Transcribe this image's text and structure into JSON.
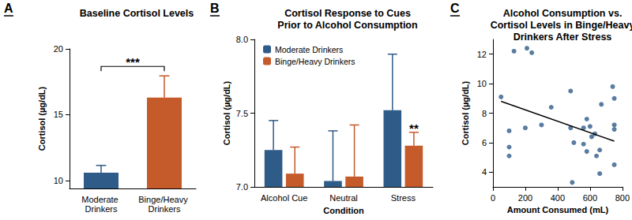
{
  "chart_data": [
    {
      "type": "bar",
      "panel": "A",
      "title": "Baseline Cortisol Levels",
      "y_label": "Cortisol (µg/dL)",
      "categories": [
        "Moderate Drinkers",
        "Binge/Heavy Drinkers"
      ],
      "values": [
        10.6,
        16.3
      ],
      "errors": [
        0.55,
        1.65
      ],
      "colors": [
        "#2f5b88",
        "#c55a2b"
      ],
      "ylim": [
        9.4,
        20
      ],
      "yticks": [
        10,
        15,
        20
      ],
      "grid": false,
      "annotations": [
        {
          "text": "***",
          "categories": [
            "Moderate Drinkers",
            "Binge/Heavy Drinkers"
          ]
        }
      ]
    },
    {
      "type": "bar",
      "panel": "B",
      "title": "Cortisol Response to Cues\nPrior to Alcohol Consumption",
      "x_label": "Condition",
      "y_label": "Cortisol (µg/dL)",
      "categories": [
        "Alcohol Cue",
        "Neutral",
        "Stress"
      ],
      "series": [
        {
          "name": "Moderate Drinkers",
          "color": "#2f5b88",
          "values": [
            7.25,
            7.04,
            7.52
          ],
          "errors": [
            0.2,
            0.34,
            0.38
          ]
        },
        {
          "name": "Binge/Heavy Drinkers",
          "color": "#c55a2b",
          "values": [
            7.09,
            7.07,
            7.28
          ],
          "errors": [
            0.18,
            0.35,
            0.09
          ]
        }
      ],
      "ylim": [
        7,
        8
      ],
      "yticks": [
        {
          "value": 7,
          "label": "7.0"
        },
        {
          "value": 7.5,
          "label": "7.5"
        },
        {
          "value": 8,
          "label": "8.0"
        }
      ],
      "grid": false,
      "legend": "upper left",
      "annotations": [
        {
          "text": "**",
          "series": "Binge/Heavy Drinkers",
          "category": "Stress"
        }
      ]
    },
    {
      "type": "scatter",
      "panel": "C",
      "title": "Alcohol Consumption vs.\nCortisol Levels in Binge/Heavy\nDrinkers After Stress",
      "x_label": "Amount Consumed (mL)",
      "y_label": "Cortisol (µg/dL)",
      "x": [
        50,
        100,
        100,
        100,
        130,
        200,
        210,
        240,
        300,
        360,
        480,
        480,
        490,
        500,
        560,
        560,
        580,
        580,
        600,
        610,
        630,
        640,
        660,
        660,
        670,
        740,
        750,
        750,
        750,
        750
      ],
      "values": [
        9.1,
        6.8,
        5.7,
        5.1,
        12.2,
        7.0,
        12.4,
        12.1,
        7.2,
        8.4,
        9.5,
        7.0,
        3.3,
        6.0,
        7.0,
        5.9,
        5.4,
        7.6,
        7.1,
        6.4,
        6.6,
        5.1,
        3.9,
        5.5,
        8.6,
        9.8,
        7.2,
        6.9,
        4.5,
        9.0
      ],
      "color": "#2f5b88",
      "xlim": [
        0,
        800
      ],
      "xticks": [
        0,
        200,
        400,
        600,
        800
      ],
      "ylim": [
        3,
        13
      ],
      "yticks": [
        4,
        6,
        8,
        10,
        12
      ],
      "grid": false,
      "trendline": {
        "x": [
          50,
          750
        ],
        "values": [
          8.8,
          6.1
        ],
        "color": "#000000"
      }
    }
  ]
}
